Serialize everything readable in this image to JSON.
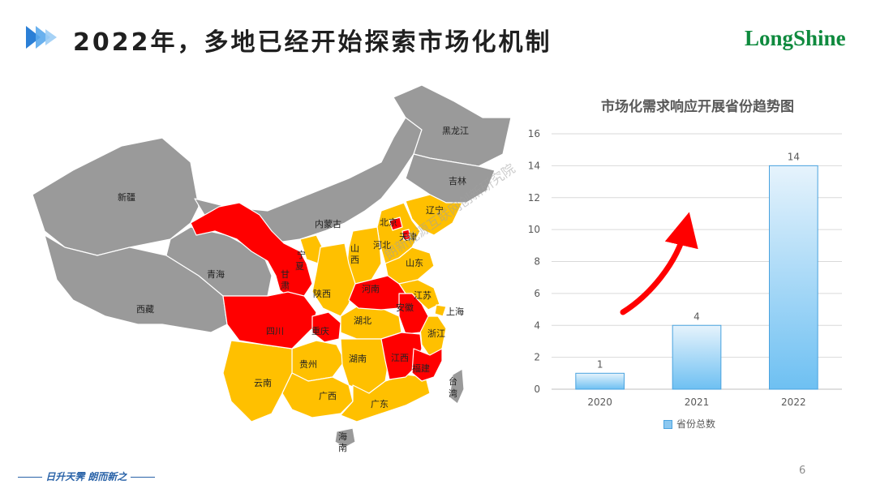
{
  "header": {
    "title": "2022年，多地已经开始探索市场化机制",
    "logo_text": "LongShine"
  },
  "map": {
    "watermark": "朗新能源互联网创新研究院",
    "colors": {
      "gray": "#9a9a9a",
      "red": "#ff0000",
      "yellow": "#ffc000"
    },
    "labels": {
      "xinjiang": "新疆",
      "xizang": "西藏",
      "qinghai": "青海",
      "neimenggu": "内蒙古",
      "heilongjiang": "黑龙江",
      "jilin": "吉林",
      "liaoning": "辽宁",
      "beijing": "北京",
      "tianjin": "天津",
      "hebei": "河北",
      "shanxi_char1": "山",
      "shanxi_char2": "西",
      "shandong": "山东",
      "ningxia_char1": "宁",
      "ningxia_char2": "夏",
      "gansu_char1": "甘",
      "gansu_char2": "肃",
      "shaanxi": "陕西",
      "henan": "河南",
      "jiangsu": "江苏",
      "anhui": "安徽",
      "shanghai": "上海",
      "hubei": "湖北",
      "zhejiang": "浙江",
      "sichuan": "四川",
      "chongqing": "重庆",
      "guizhou": "贵州",
      "hunan": "湖南",
      "jiangxi": "江西",
      "fujian": "福建",
      "yunnan": "云南",
      "guangxi": "广西",
      "guangdong": "广东",
      "taiwan_char1": "台",
      "taiwan_char2": "湾",
      "hainan_char1": "海",
      "hainan_char2": "南"
    }
  },
  "chart_data": {
    "type": "bar",
    "title": "市场化需求响应开展省份趋势图",
    "categories": [
      "2020",
      "2021",
      "2022"
    ],
    "series": [
      {
        "name": "省份总数",
        "values": [
          1,
          4,
          14
        ]
      }
    ],
    "ylim": [
      0,
      16
    ],
    "yticks": [
      0,
      2,
      4,
      6,
      8,
      10,
      12,
      14,
      16
    ],
    "data_labels": [
      "1",
      "4",
      "14"
    ],
    "grid": true,
    "legend": "bottom",
    "colors": {
      "bar_top": "#e6f3fc",
      "bar_bottom": "#6ec0f2",
      "bar_border": "#4aa3df",
      "arrow": "#ff0000"
    }
  },
  "footer": {
    "slogan": "日升天霁 朗而新之",
    "page_number": "6"
  }
}
